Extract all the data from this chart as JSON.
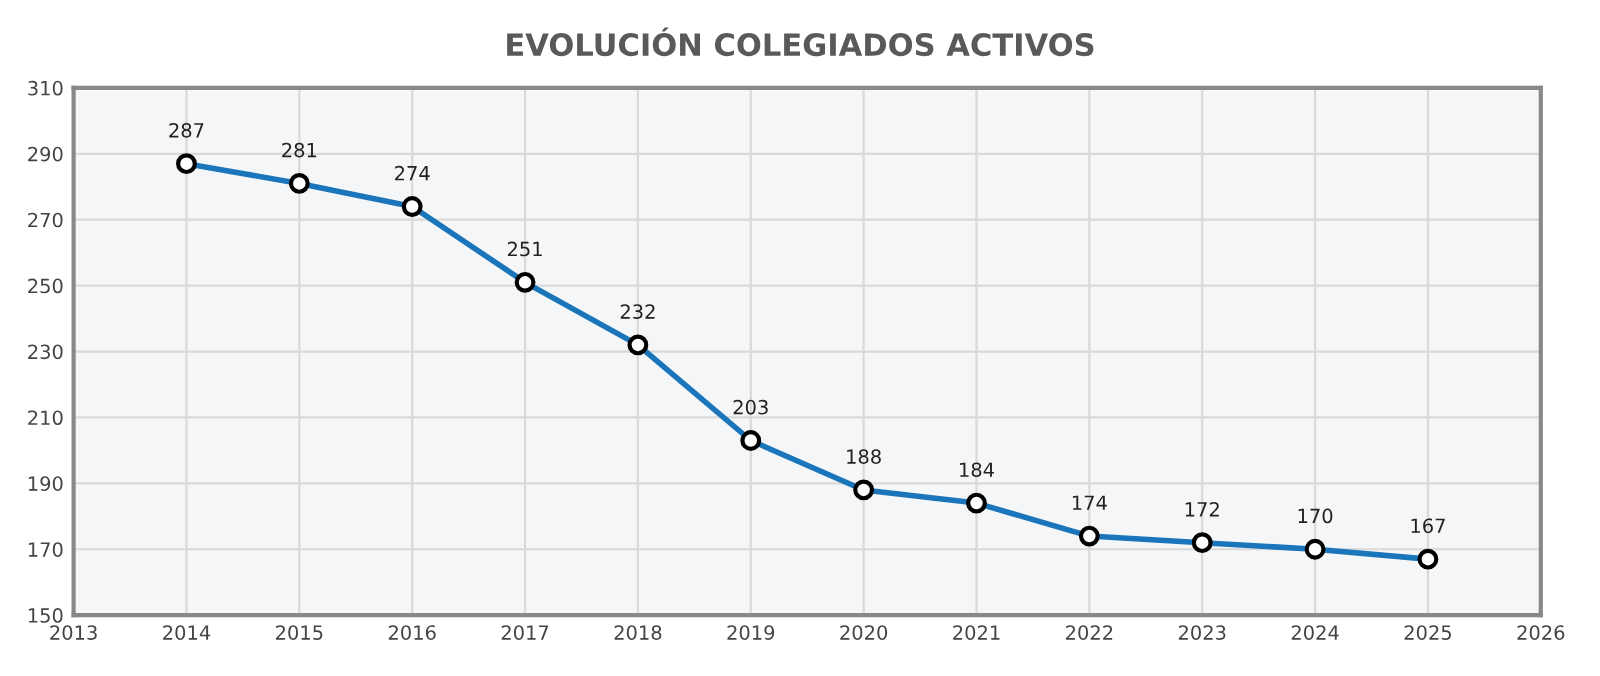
{
  "chart_data": {
    "type": "line",
    "title": "EVOLUCIÓN COLEGIADOS ACTIVOS",
    "x": [
      2014,
      2015,
      2016,
      2017,
      2018,
      2019,
      2020,
      2021,
      2022,
      2023,
      2024,
      2025
    ],
    "series": [
      {
        "color": "#1b75bb",
        "values": [
          287,
          281,
          274,
          251,
          232,
          203,
          188,
          184,
          174,
          172,
          170,
          167
        ]
      }
    ],
    "xlim": [
      2013,
      2026
    ],
    "xticks": [
      2013,
      2014,
      2015,
      2016,
      2017,
      2018,
      2019,
      2020,
      2021,
      2022,
      2023,
      2024,
      2025,
      2026
    ],
    "ylim": [
      150,
      310
    ],
    "yticks": [
      150,
      170,
      190,
      210,
      230,
      250,
      270,
      290,
      310
    ],
    "grid": true,
    "marker": "circle",
    "line_style": "solid",
    "data_labels": true
  }
}
